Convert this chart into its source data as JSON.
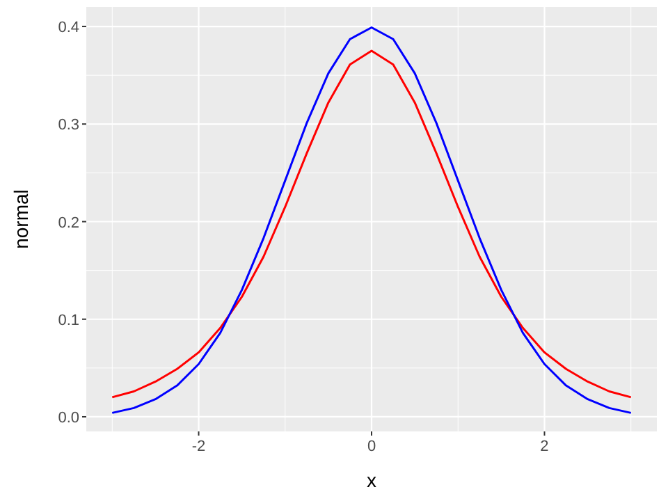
{
  "chart_data": {
    "type": "line",
    "xlabel": "x",
    "ylabel": "normal",
    "x": [
      -3,
      -2.75,
      -2.5,
      -2.25,
      -2,
      -1.75,
      -1.5,
      -1.25,
      -1,
      -0.75,
      -0.5,
      -0.25,
      0,
      0.25,
      0.5,
      0.75,
      1,
      1.25,
      1.5,
      1.75,
      2,
      2.25,
      2.5,
      2.75,
      3
    ],
    "series": [
      {
        "color": "#ff0000",
        "values": [
          0.02,
          0.026,
          0.036,
          0.049,
          0.066,
          0.091,
          0.123,
          0.164,
          0.215,
          0.27,
          0.322,
          0.361,
          0.375,
          0.361,
          0.322,
          0.27,
          0.215,
          0.164,
          0.123,
          0.091,
          0.066,
          0.049,
          0.036,
          0.026,
          0.02
        ]
      },
      {
        "color": "#0000ff",
        "values": [
          0.004,
          0.009,
          0.018,
          0.032,
          0.054,
          0.086,
          0.13,
          0.183,
          0.242,
          0.301,
          0.352,
          0.387,
          0.399,
          0.387,
          0.352,
          0.301,
          0.242,
          0.183,
          0.13,
          0.086,
          0.054,
          0.032,
          0.018,
          0.009,
          0.004
        ]
      }
    ],
    "xlim": [
      -3.3,
      3.3
    ],
    "xticks": [
      -2,
      0,
      2
    ],
    "ylim": [
      -0.015,
      0.42
    ],
    "yticks": [
      {
        "value": 0,
        "label": "0.0"
      },
      {
        "value": 0.1,
        "label": "0.1"
      },
      {
        "value": 0.2,
        "label": "0.2"
      },
      {
        "value": 0.3,
        "label": "0.3"
      },
      {
        "value": 0.4,
        "label": "0.4"
      }
    ],
    "grid": true,
    "line_style": "solid",
    "marker": "none"
  }
}
